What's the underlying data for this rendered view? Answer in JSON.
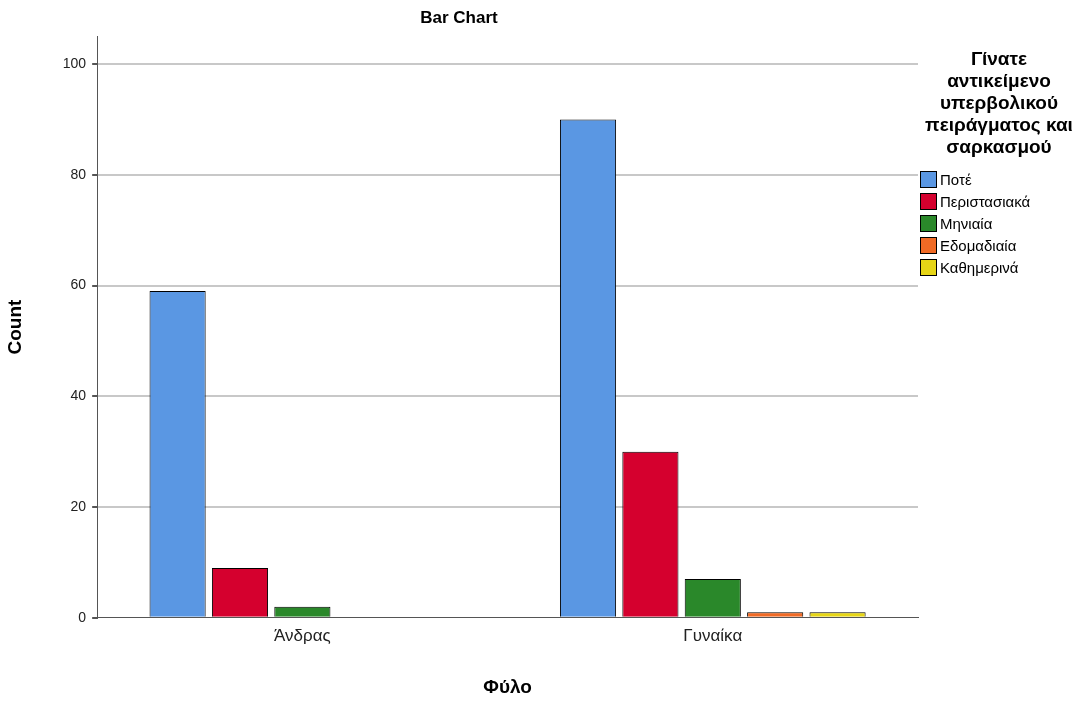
{
  "chart_data": {
    "type": "bar",
    "title": "Bar Chart",
    "xlabel": "Φύλο",
    "ylabel": "Count",
    "legend_title": "Γίνατε αντικείμενο υπερβολικού πειράγματος και σαρκασμού",
    "categories": [
      "Άνδρας",
      "Γυναίκα"
    ],
    "series": [
      {
        "name": "Ποτέ",
        "color": "#5a97e3",
        "values": [
          59,
          90
        ]
      },
      {
        "name": "Περιστασιακά",
        "color": "#d5002e",
        "values": [
          9,
          30
        ]
      },
      {
        "name": "Μηνιαία",
        "color": "#2a882a",
        "values": [
          2,
          7
        ]
      },
      {
        "name": "Εδομαδιαία",
        "color": "#f06a25",
        "values": [
          null,
          1
        ]
      },
      {
        "name": "Καθημερινά",
        "color": "#e6d516",
        "values": [
          null,
          1
        ]
      }
    ],
    "ylim": [
      0,
      105
    ],
    "yticks": [
      0,
      20,
      40,
      60,
      80,
      100
    ],
    "grid": "y",
    "legend": "right"
  }
}
